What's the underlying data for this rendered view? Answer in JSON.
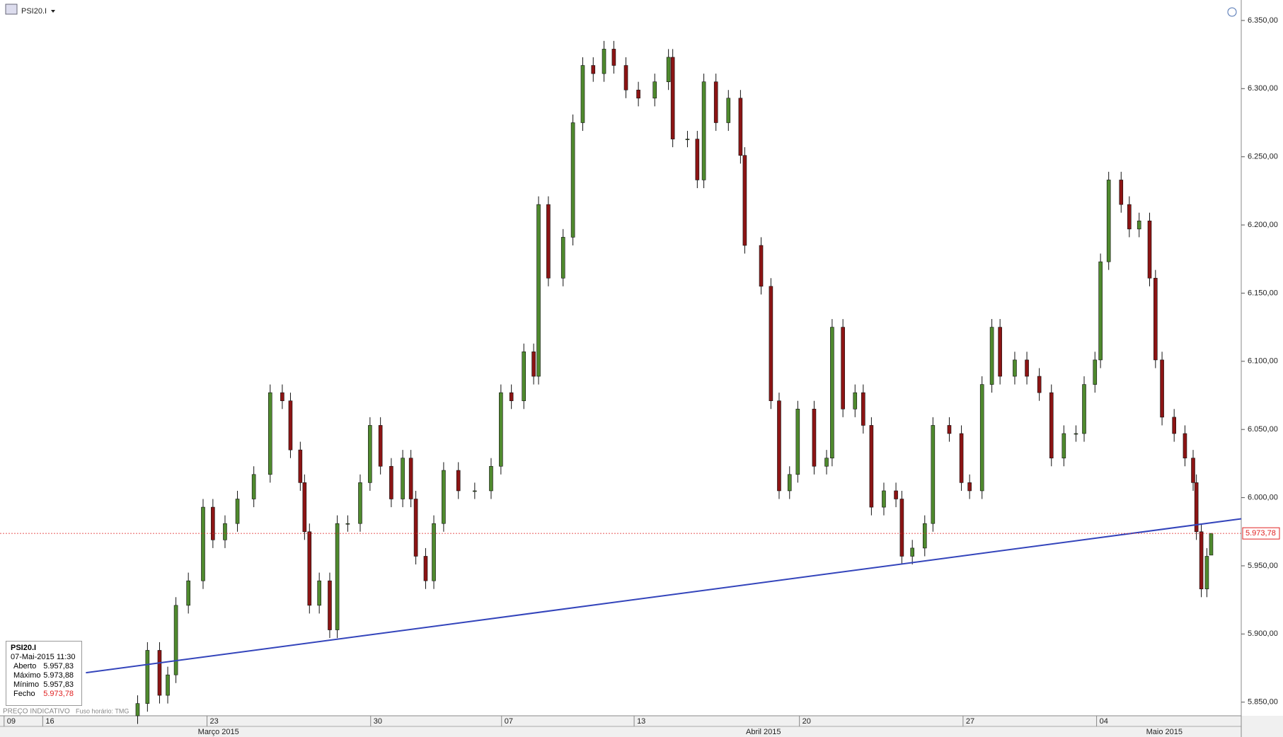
{
  "header": {
    "symbol": "PSI20.I"
  },
  "chart_data": {
    "type": "candlestick",
    "x": [
      4.08,
      4.38,
      4.75,
      5,
      5.25,
      5.63,
      6.08,
      6.38,
      6.75,
      7.13,
      7.63,
      8.13,
      8.5,
      8.75,
      9.05,
      9.18,
      9.33,
      9.63,
      9.95,
      10.18,
      10.5,
      10.88,
      11.18,
      11.5,
      11.83,
      12.18,
      12.43,
      12.58,
      12.88,
      13.13,
      13.43,
      13.88,
      14.38,
      14.88,
      15.18,
      15.5,
      15.88,
      16.18,
      16.33,
      16.63,
      17.08,
      17.38,
      17.68,
      18,
      18.33,
      18.63,
      19,
      19.38,
      19.88,
      20.3,
      20.43,
      20.88,
      21.18,
      21.38,
      21.75,
      22.13,
      22.5,
      22.63,
      23.13,
      23.43,
      23.68,
      24,
      24.25,
      24.75,
      25.13,
      25.3,
      25.63,
      26,
      26.25,
      26.5,
      26.88,
      27.25,
      27.43,
      27.75,
      28.13,
      28.38,
      28.88,
      29.25,
      29.5,
      29.88,
      30.18,
      30.43,
      30.88,
      31.25,
      31.63,
      32,
      32.38,
      32.75,
      33,
      33.33,
      33.5,
      33.75,
      34.13,
      34.38,
      34.68,
      35,
      35.18,
      35.38,
      35.75,
      36.08,
      36.33,
      36.43,
      36.58,
      36.75,
      36.88
    ],
    "open": [
      5840,
      5849,
      5888,
      5855,
      5870,
      5921,
      5939,
      5993,
      5969,
      5981,
      5999,
      6017,
      6077,
      6071,
      6035,
      6011,
      5975,
      5921,
      5939,
      5903,
      5981,
      5981,
      6011,
      6053,
      6023,
      5999,
      6029,
      5999,
      5957,
      5939,
      5981,
      6020,
      6005,
      6005,
      6023,
      6077,
      6071,
      6107,
      6089,
      6215,
      6161,
      6191,
      6275,
      6317,
      6311,
      6329,
      6317,
      6299,
      6293,
      6305,
      6323,
      6263,
      6263,
      6233,
      6305,
      6275,
      6293,
      6251,
      6185,
      6155,
      6071,
      6005,
      6017,
      6065,
      6023,
      6029,
      6125,
      6065,
      6077,
      6053,
      5993,
      6005,
      5999,
      5957,
      5963,
      5981,
      6053,
      6047,
      6011,
      6005,
      6083,
      6125,
      6089,
      6101,
      6089,
      6077,
      6029,
      6047,
      6047,
      6083,
      6101,
      6173,
      6233,
      6215,
      6197,
      6203,
      6161,
      6101,
      6059,
      6047,
      6029,
      6011,
      5975,
      5933,
      5957.83
    ],
    "high": [
      5855,
      5894,
      5894,
      5876,
      5927,
      5945,
      5999,
      5999,
      5987,
      6005,
      6023,
      6083,
      6083,
      6077,
      6041,
      6017,
      5981,
      5945,
      5945,
      5987,
      5987,
      6017,
      6059,
      6059,
      6029,
      6035,
      6035,
      6005,
      5963,
      5987,
      6026,
      6026,
      6011,
      6029,
      6083,
      6083,
      6113,
      6113,
      6221,
      6221,
      6197,
      6281,
      6323,
      6323,
      6335,
      6335,
      6323,
      6305,
      6311,
      6329,
      6329,
      6269,
      6269,
      6311,
      6311,
      6299,
      6299,
      6257,
      6191,
      6161,
      6077,
      6023,
      6071,
      6071,
      6035,
      6131,
      6131,
      6083,
      6083,
      6059,
      6011,
      6011,
      6005,
      5969,
      5987,
      6059,
      6059,
      6053,
      6017,
      6089,
      6131,
      6131,
      6107,
      6107,
      6095,
      6083,
      6053,
      6053,
      6089,
      6107,
      6179,
      6239,
      6239,
      6221,
      6209,
      6209,
      6167,
      6107,
      6065,
      6053,
      6035,
      6017,
      5981,
      5963,
      5973.88
    ],
    "low": [
      5834,
      5843,
      5849,
      5849,
      5864,
      5915,
      5933,
      5963,
      5963,
      5975,
      5993,
      6011,
      6065,
      6029,
      6005,
      5969,
      5915,
      5915,
      5897,
      5897,
      5975,
      5975,
      6005,
      6017,
      5993,
      5993,
      5993,
      5951,
      5933,
      5933,
      5975,
      5999,
      5999,
      5999,
      6017,
      6065,
      6065,
      6083,
      6083,
      6155,
      6155,
      6185,
      6269,
      6305,
      6305,
      6311,
      6293,
      6287,
      6287,
      6299,
      6257,
      6257,
      6227,
      6227,
      6269,
      6269,
      6245,
      6179,
      6149,
      6065,
      5999,
      5999,
      6011,
      6017,
      6017,
      6023,
      6059,
      6059,
      6047,
      5987,
      5987,
      5993,
      5951,
      5951,
      5957,
      5975,
      6041,
      6005,
      5999,
      5999,
      6077,
      6083,
      6083,
      6083,
      6071,
      6023,
      6023,
      6041,
      6041,
      6077,
      6095,
      6167,
      6209,
      6191,
      6191,
      6155,
      6095,
      6053,
      6041,
      6023,
      6005,
      5969,
      5927,
      5927,
      5957.83
    ],
    "close": [
      5849,
      5888,
      5855,
      5870,
      5921,
      5939,
      5993,
      5969,
      5981,
      5999,
      6017,
      6077,
      6071,
      6035,
      6011,
      5975,
      5921,
      5939,
      5903,
      5981,
      5981,
      6011,
      6053,
      6023,
      5999,
      6029,
      5999,
      5957,
      5939,
      5981,
      6020,
      6005,
      6005,
      6023,
      6077,
      6071,
      6107,
      6089,
      6215,
      6161,
      6191,
      6275,
      6317,
      6311,
      6329,
      6317,
      6299,
      6293,
      6305,
      6323,
      6263,
      6263,
      6233,
      6305,
      6275,
      6293,
      6251,
      6185,
      6155,
      6071,
      6005,
      6017,
      6065,
      6023,
      6029,
      6125,
      6065,
      6077,
      6053,
      5993,
      6005,
      5999,
      5957,
      5963,
      5981,
      6053,
      6047,
      6011,
      6005,
      6083,
      6125,
      6089,
      6101,
      6089,
      6077,
      6029,
      6047,
      6047,
      6083,
      6101,
      6173,
      6233,
      6215,
      6197,
      6203,
      6161,
      6101,
      6059,
      6047,
      6029,
      6011,
      5975,
      5933,
      5957,
      5973.78
    ],
    "up_color": "#4f8a2e",
    "down_color": "#8c1414",
    "xlim": [
      -0.125,
      37.8
    ],
    "ylim": [
      5840,
      6365
    ],
    "yticks": [
      {
        "value": 5850,
        "label": "5.850,00"
      },
      {
        "value": 5900,
        "label": "5.900,00"
      },
      {
        "value": 5950,
        "label": "5.950,00"
      },
      {
        "value": 6000,
        "label": "6.000,00"
      },
      {
        "value": 6050,
        "label": "6.050,00"
      },
      {
        "value": 6100,
        "label": "6.100,00"
      },
      {
        "value": 6150,
        "label": "6.150,00"
      },
      {
        "value": 6200,
        "label": "6.200,00"
      },
      {
        "value": 6250,
        "label": "6.250,00"
      },
      {
        "value": 6300,
        "label": "6.300,00"
      },
      {
        "value": 6350,
        "label": "6.350,00"
      }
    ],
    "xticks": [
      {
        "value": 0,
        "label": "09"
      },
      {
        "value": 1.18,
        "label": "16"
      },
      {
        "value": 6.2,
        "label": "23"
      },
      {
        "value": 11.2,
        "label": "30"
      },
      {
        "value": 15.2,
        "label": "07"
      },
      {
        "value": 19.25,
        "label": "13"
      },
      {
        "value": 24.3,
        "label": "20"
      },
      {
        "value": 29.3,
        "label": "27"
      },
      {
        "value": 33.38,
        "label": "04"
      }
    ],
    "month_ticks": [
      {
        "value": 6.55,
        "label": "Março 2015"
      },
      {
        "value": 23.2,
        "label": "Abril 2015"
      },
      {
        "value": 35.45,
        "label": "Maio 2015"
      }
    ],
    "trendline": {
      "x": [
        2.5,
        37.8
      ],
      "y": [
        5871.6,
        5984.5
      ],
      "color": "#3344bb"
    },
    "last_price": {
      "value": 5973.78,
      "label": "5.973,78",
      "color": "#e02020"
    }
  },
  "info_box": {
    "title": "PSI20.I",
    "datetime": "07-Mai-2015 11:30",
    "rows": [
      [
        "Aberto",
        "5.957,83"
      ],
      [
        "Máximo",
        "5.973,88"
      ],
      [
        "Mínimo",
        "5.957,83"
      ],
      [
        "Fecho",
        "5.973,78"
      ]
    ]
  },
  "footer": {
    "note": "PREÇO INDICATIVO",
    "timezone": "Fuso horário: TMG"
  }
}
